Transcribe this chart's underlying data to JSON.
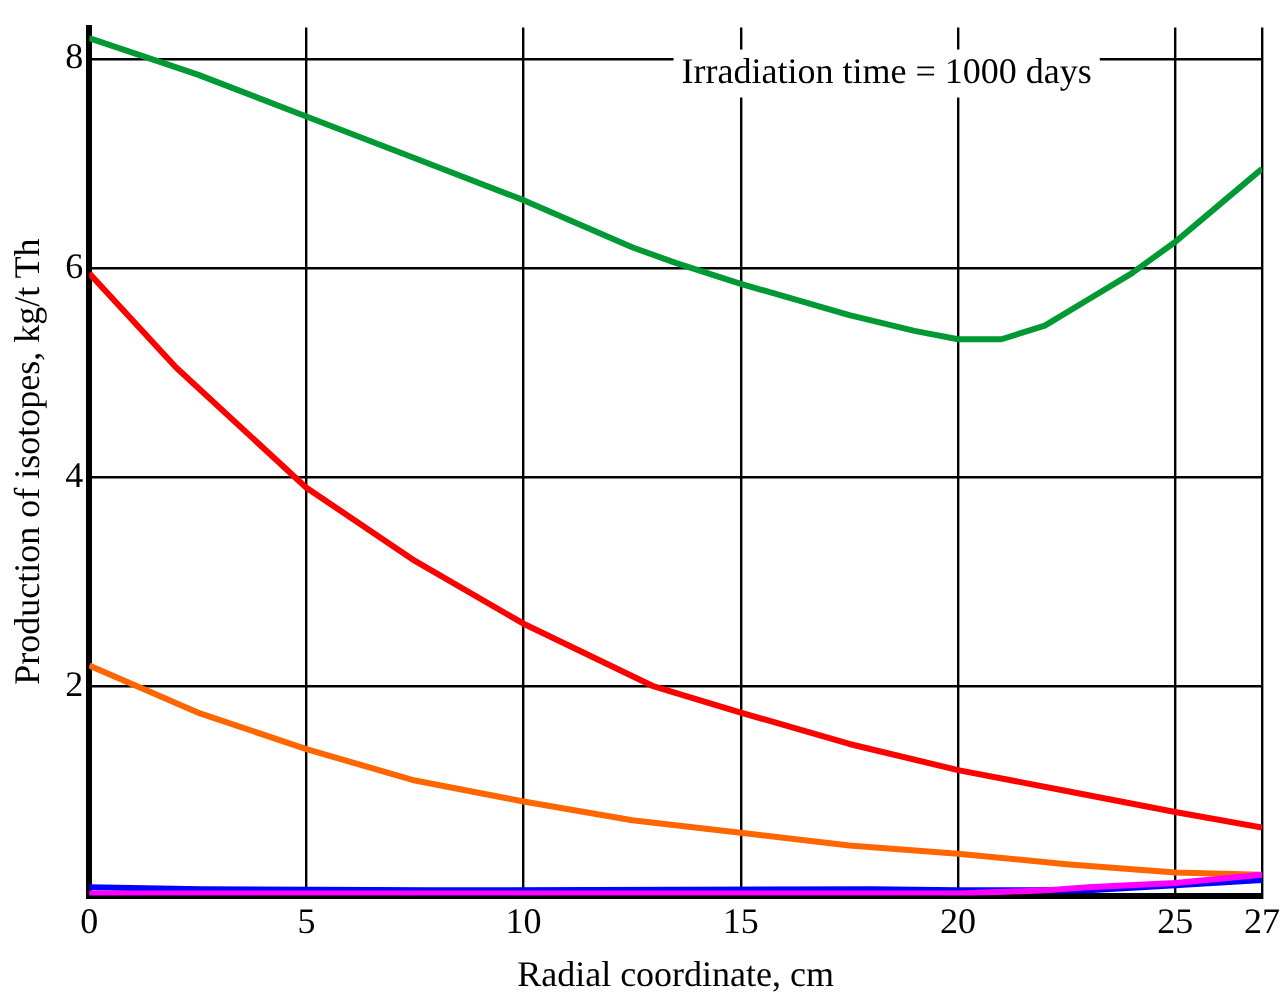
{
  "chart_data": {
    "type": "line",
    "xlabel": "Radial coordinate, cm",
    "ylabel": "Production of isotopes, kg/t Th",
    "annotations": [
      "Irradiation time = 1000 days"
    ],
    "xlim": [
      0,
      27
    ],
    "xticks": [
      0,
      5,
      10,
      15,
      20,
      25,
      27
    ],
    "ylim": [
      0,
      8.3
    ],
    "yticks": [
      2,
      4,
      6,
      8
    ],
    "grid": true,
    "legend": false,
    "marker": "none",
    "line_style": "solid",
    "series": [
      {
        "color": "#009933",
        "x": [
          0,
          2.5,
          5,
          7.5,
          10,
          12.5,
          13.5,
          15,
          17.5,
          19,
          20,
          21,
          22,
          23,
          24,
          25,
          26,
          27
        ],
        "values": [
          8.2,
          7.85,
          7.45,
          7.05,
          6.65,
          6.2,
          6.05,
          5.85,
          5.55,
          5.4,
          5.32,
          5.32,
          5.45,
          5.7,
          5.95,
          6.25,
          6.6,
          6.95
        ]
      },
      {
        "color": "#ff0000",
        "x": [
          0,
          2,
          5,
          7.5,
          10,
          13,
          15,
          17.5,
          20,
          22.5,
          25,
          27
        ],
        "values": [
          5.95,
          5.05,
          3.9,
          3.2,
          2.6,
          2.0,
          1.75,
          1.45,
          1.2,
          1.0,
          0.8,
          0.65
        ]
      },
      {
        "color": "#ff6600",
        "x": [
          0,
          2.5,
          5,
          7.5,
          10,
          12.5,
          15,
          17.5,
          20,
          22.5,
          25,
          27
        ],
        "values": [
          2.2,
          1.75,
          1.4,
          1.1,
          0.9,
          0.72,
          0.6,
          0.48,
          0.4,
          0.3,
          0.22,
          0.2
        ]
      },
      {
        "color": "#0000ff",
        "x": [
          0,
          2.6,
          7.8,
          18,
          20,
          23,
          25,
          27
        ],
        "values": [
          0.08,
          0.06,
          0.05,
          0.06,
          0.05,
          0.05,
          0.1,
          0.15
        ]
      },
      {
        "color": "#ff00ff",
        "x": [
          0,
          10,
          20,
          22,
          23,
          25,
          27
        ],
        "values": [
          0.02,
          0.02,
          0.02,
          0.05,
          0.08,
          0.12,
          0.2
        ]
      }
    ]
  }
}
